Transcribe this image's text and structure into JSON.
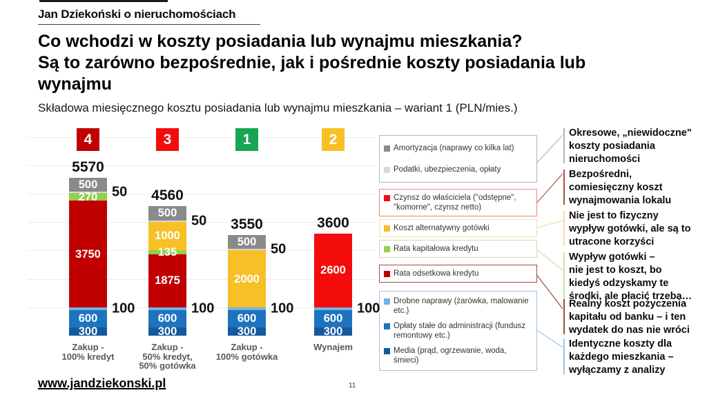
{
  "brand": {
    "header": "Jan Dziekoński o nieruchomościach",
    "website": "www.jandziekonski.pl",
    "page_number": "11"
  },
  "title": {
    "lines": [
      "Co wchodzi w koszty posiadania lub wynajmu mieszkania?",
      "Są to zarówno bezpośrednie, jak i pośrednie koszty posiadania lub",
      "wynajmu"
    ]
  },
  "chart_data": {
    "type": "stacked-bar",
    "title": "Składowa miesięcznego kosztu posiadania lub wynajmu mieszkania – wariant 1 (PLN/mies.)",
    "unit": "PLN/mies.",
    "ylim": [
      0,
      7000
    ],
    "grid": true,
    "legend_position": "right",
    "segment_colors": {
      "amortyzacja": "#8A8A8A",
      "podatki": "#D9D9D9",
      "czynsz": "#F40B0B",
      "alternatywny": "#F6C026",
      "kapitalowa": "#92D050",
      "odsetkowa": "#C00000",
      "drobne": "#74B3E3",
      "oplaty": "#1E73BE",
      "media": "#15599F"
    },
    "categories": [
      "Zakup -\n100% kredyt",
      "Zakup -\n50% kredyt,\n50% gotówka",
      "Zakup -\n100% gotówka",
      "Wynajem"
    ],
    "bars": [
      {
        "badge": {
          "label": "4",
          "color": "#C00000"
        },
        "category": "Zakup -\n100% kredyt",
        "total": 5570,
        "segments": [
          {
            "key": "media",
            "value": 300,
            "label_inside": "300"
          },
          {
            "key": "oplaty",
            "value": 600,
            "label_inside": "600"
          },
          {
            "key": "drobne",
            "value": 100,
            "label_outside": "100"
          },
          {
            "key": "odsetkowa",
            "value": 3750,
            "label_inside": "3750"
          },
          {
            "key": "kapitalowa",
            "value": 270,
            "label_inside": "270"
          },
          {
            "key": "podatki",
            "value": 50,
            "label_outside": "50"
          },
          {
            "key": "amortyzacja",
            "value": 500,
            "label_inside": "500"
          }
        ]
      },
      {
        "badge": {
          "label": "3",
          "color": "#F40B0B"
        },
        "category": "Zakup -\n50% kredyt,\n50% gotówka",
        "total": 4560,
        "segments": [
          {
            "key": "media",
            "value": 300,
            "label_inside": "300"
          },
          {
            "key": "oplaty",
            "value": 600,
            "label_inside": "600"
          },
          {
            "key": "drobne",
            "value": 100,
            "label_outside": "100"
          },
          {
            "key": "odsetkowa",
            "value": 1875,
            "label_inside": "1875"
          },
          {
            "key": "kapitalowa",
            "value": 135,
            "label_inside": "135"
          },
          {
            "key": "alternatywny",
            "value": 1000,
            "label_inside": "1000"
          },
          {
            "key": "podatki",
            "value": 50,
            "label_outside": "50"
          },
          {
            "key": "amortyzacja",
            "value": 500,
            "label_inside": "500"
          }
        ]
      },
      {
        "badge": {
          "label": "1",
          "color": "#17A551"
        },
        "category": "Zakup -\n100% gotówka",
        "total": 3550,
        "segments": [
          {
            "key": "media",
            "value": 300,
            "label_inside": "300"
          },
          {
            "key": "oplaty",
            "value": 600,
            "label_inside": "600"
          },
          {
            "key": "drobne",
            "value": 100,
            "label_outside": "100"
          },
          {
            "key": "alternatywny",
            "value": 2000,
            "label_inside": "2000"
          },
          {
            "key": "podatki",
            "value": 50,
            "label_outside": "50"
          },
          {
            "key": "amortyzacja",
            "value": 500,
            "label_inside": "500"
          }
        ]
      },
      {
        "badge": {
          "label": "2",
          "color": "#F6C026"
        },
        "category": "Wynajem",
        "total": 3600,
        "segments": [
          {
            "key": "media",
            "value": 300,
            "label_inside": "300"
          },
          {
            "key": "oplaty",
            "value": 600,
            "label_inside": "600"
          },
          {
            "key": "drobne",
            "value": 100,
            "label_outside": "100"
          },
          {
            "key": "czynsz",
            "value": 2600,
            "label_inside": "2600"
          }
        ]
      }
    ]
  },
  "legend": {
    "groups": [
      {
        "border": "#B3B3B3",
        "items": [
          {
            "key": "amortyzacja",
            "label": "Amortyzacja (naprawy co kilka lat)"
          },
          {
            "key": "podatki",
            "label": "Podatki, ubezpieczenia, opłaty"
          }
        ]
      },
      {
        "border": "#F08080",
        "items": [
          {
            "key": "czynsz",
            "label": "Czynsz do właściciela (\"odstępne\", \"komorne\", czynsz netto)"
          }
        ]
      },
      {
        "border": "#F2DFA0",
        "items": [
          {
            "key": "alternatywny",
            "label": "Koszt alternatywny gotówki"
          }
        ]
      },
      {
        "border": "#C9DFAE",
        "items": [
          {
            "key": "kapitalowa",
            "label": "Rata kapitałowa kredytu"
          }
        ]
      },
      {
        "border": "#9E4B42",
        "items": [
          {
            "key": "odsetkowa",
            "label": "Rata odsetkowa kredytu"
          }
        ]
      },
      {
        "border": "#9DC3E6",
        "items": [
          {
            "key": "drobne",
            "label": "Drobne naprawy (żarówka, malowanie etc.)"
          },
          {
            "key": "oplaty",
            "label": "Opłaty stałe do administracji (fundusz remontowy etc.)"
          },
          {
            "key": "media",
            "label": "Media (prąd, ogrzewanie, woda, śmieci)"
          }
        ]
      }
    ]
  },
  "annotations": [
    {
      "color": "#B3B3B3",
      "text": "Okresowe, „niewidoczne\"\nkoszty posiadania\nnieruchomości"
    },
    {
      "color": "#B0504A",
      "text": "Bezpośredni,\ncomiesięczny koszt\nwynajmowania lokalu"
    },
    {
      "color": "#F2DFA0",
      "text": "Nie jest to fizyczny\nwypływ gotówki, ale są to\nutracone korzyści"
    },
    {
      "color": "#C9DFAE",
      "text": "Wypływ gotówki –\nnie jest to koszt, bo\nkiedyś odzyskamy te\nśrodki, ale płacić trzeba…"
    },
    {
      "color": "#9E4B42",
      "text": "Realny koszt pożyczenia\nkapitału od banku – i ten\nwydatek do nas nie wróci"
    },
    {
      "color": "#9DC3E6",
      "text": "Identyczne koszty dla\nkażdego mieszkania –\nwyłączamy z analizy"
    }
  ]
}
